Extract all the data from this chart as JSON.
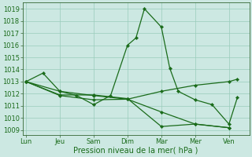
{
  "xlabel": "Pression niveau de la mer( hPa )",
  "bg_color": "#cce8e2",
  "grid_color": "#99ccbb",
  "line_color": "#1a6b1a",
  "spine_color": "#336633",
  "ylim": [
    1008.6,
    1019.5
  ],
  "xlim": [
    -0.2,
    13.2
  ],
  "xtick_labels": [
    "Lun",
    "Jeu",
    "Sam",
    "Dim",
    "Mar",
    "Mer",
    "Ven"
  ],
  "xtick_positions": [
    0,
    2,
    4,
    6,
    8,
    10,
    12
  ],
  "ytick_values": [
    1009,
    1010,
    1011,
    1012,
    1013,
    1014,
    1015,
    1016,
    1017,
    1018,
    1019
  ],
  "series": [
    {
      "x": [
        0,
        1,
        2,
        3,
        4,
        5,
        6,
        6.5,
        7,
        8,
        8.5,
        9,
        10,
        11,
        12,
        12.5
      ],
      "y": [
        1013.0,
        1013.7,
        1012.2,
        1011.85,
        1011.1,
        1011.85,
        1016.0,
        1016.6,
        1019.0,
        1017.5,
        1014.1,
        1012.2,
        1011.5,
        1011.1,
        1009.5,
        1011.7
      ]
    },
    {
      "x": [
        0,
        2,
        4,
        6,
        8,
        10,
        12,
        12.5
      ],
      "y": [
        1013.0,
        1012.2,
        1011.85,
        1011.55,
        1012.2,
        1012.7,
        1013.0,
        1013.2
      ]
    },
    {
      "x": [
        0,
        2,
        4,
        6,
        8,
        10,
        12
      ],
      "y": [
        1013.0,
        1011.85,
        1011.5,
        1011.55,
        1010.5,
        1009.5,
        1009.2
      ]
    },
    {
      "x": [
        0,
        2,
        4,
        6,
        8,
        10,
        12
      ],
      "y": [
        1013.0,
        1011.9,
        1011.9,
        1011.6,
        1009.3,
        1009.5,
        1009.2
      ]
    }
  ]
}
